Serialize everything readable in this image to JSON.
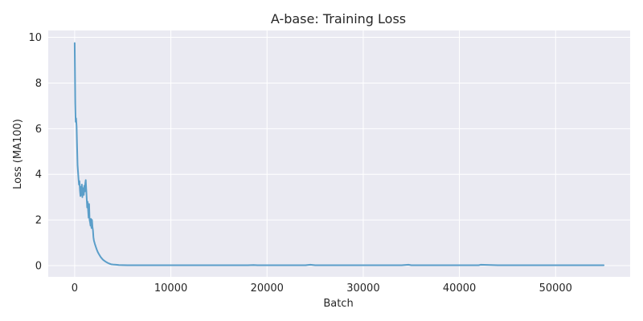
{
  "chart_data": {
    "type": "line",
    "title": "A-base: Training Loss",
    "xlabel": "Batch",
    "ylabel": "Loss (MA100)",
    "xlim": [
      -2750,
      57750
    ],
    "ylim": [
      -0.49,
      10.3
    ],
    "xticks": [
      0,
      10000,
      20000,
      30000,
      40000,
      50000
    ],
    "yticks": [
      0,
      2,
      4,
      6,
      8,
      10
    ],
    "grid": true,
    "legend": "none",
    "colors": {
      "background": "#eaeaf2",
      "grid": "#ffffff",
      "line": "#5b9ec9"
    },
    "series": [
      {
        "x": [
          0,
          30,
          60,
          100,
          150,
          200,
          250,
          300,
          350,
          400,
          450,
          500,
          550,
          600,
          650,
          700,
          750,
          800,
          850,
          900,
          950,
          1000,
          1050,
          1100,
          1150,
          1200,
          1250,
          1300,
          1350,
          1400,
          1450,
          1500,
          1550,
          1600,
          1650,
          1700,
          1750,
          1800,
          1850,
          1900,
          1950,
          2000,
          2100,
          2200,
          2300,
          2400,
          2500,
          2600,
          2700,
          2800,
          2900,
          3000,
          3200,
          3400,
          3600,
          3800,
          4000,
          4300,
          4600,
          5000,
          5500,
          6000,
          7000,
          8000,
          9000,
          10000,
          11000,
          12000,
          13000,
          14000,
          15000,
          16000,
          17000,
          18000,
          18600,
          19000,
          20000,
          22000,
          24000,
          24500,
          25000,
          26000,
          28000,
          30000,
          32000,
          34000,
          34700,
          35000,
          36000,
          38000,
          40000,
          42000,
          42200,
          44000,
          46000,
          48000,
          50000,
          52000,
          54000,
          55000
        ],
        "y": [
          9.75,
          8.5,
          7.1,
          6.3,
          6.45,
          6.1,
          5.2,
          4.4,
          4.1,
          3.8,
          3.55,
          3.7,
          3.3,
          3.05,
          3.45,
          3.1,
          3.55,
          3.0,
          3.4,
          3.25,
          3.1,
          3.5,
          3.25,
          3.6,
          3.75,
          3.35,
          2.95,
          2.55,
          2.8,
          2.4,
          2.1,
          2.7,
          2.0,
          1.9,
          1.75,
          2.05,
          1.65,
          2.0,
          1.7,
          1.55,
          1.25,
          1.1,
          0.95,
          0.82,
          0.7,
          0.6,
          0.52,
          0.45,
          0.38,
          0.33,
          0.28,
          0.24,
          0.18,
          0.13,
          0.09,
          0.06,
          0.05,
          0.04,
          0.03,
          0.025,
          0.02,
          0.02,
          0.02,
          0.02,
          0.02,
          0.02,
          0.02,
          0.02,
          0.02,
          0.02,
          0.02,
          0.02,
          0.02,
          0.02,
          0.03,
          0.02,
          0.02,
          0.02,
          0.02,
          0.04,
          0.02,
          0.02,
          0.02,
          0.02,
          0.02,
          0.02,
          0.04,
          0.02,
          0.02,
          0.02,
          0.02,
          0.02,
          0.04,
          0.02,
          0.02,
          0.02,
          0.02,
          0.02,
          0.02,
          0.02
        ]
      }
    ]
  }
}
